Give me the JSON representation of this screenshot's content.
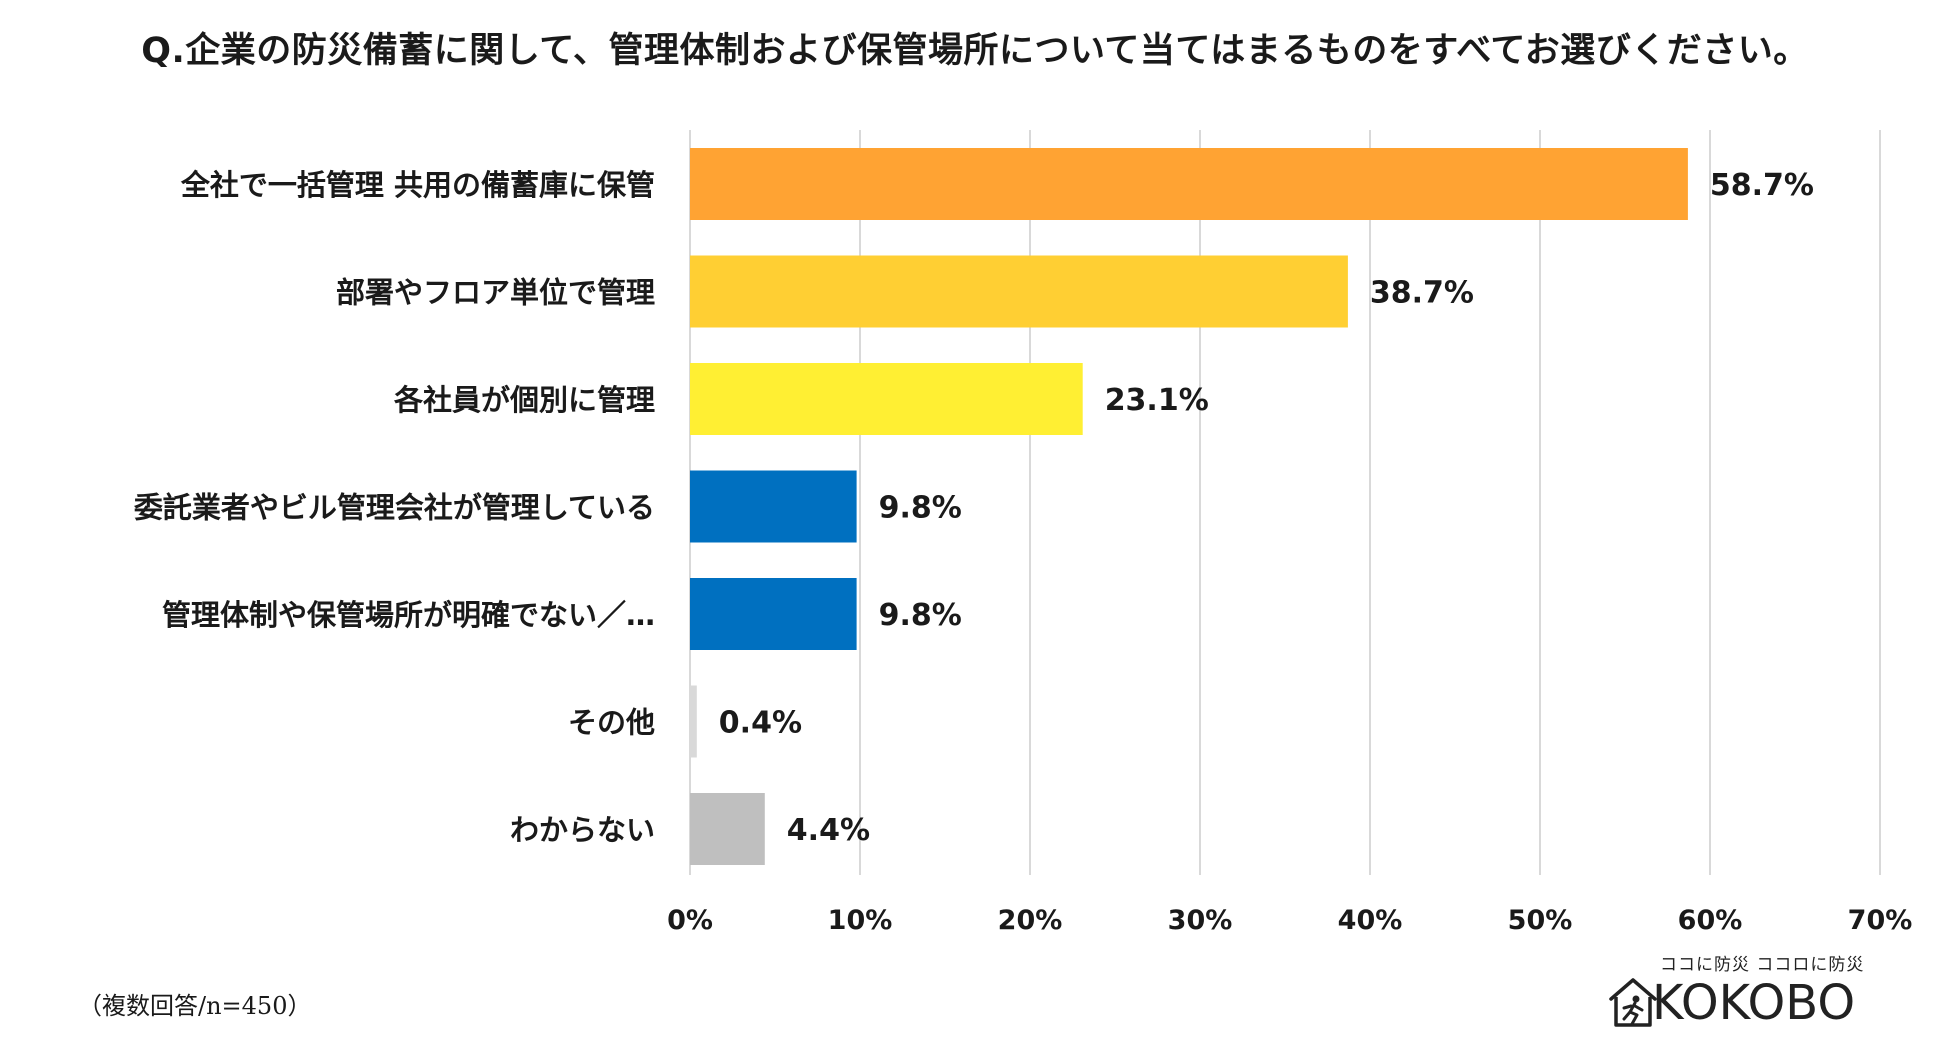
{
  "title": "Q.企業の防災備蓄に関して、管理体制および保管場所について当てはまるものをすべてお選びください。",
  "footnote": "（複数回答/n=450）",
  "logo": {
    "tagline": "ココに防災 ココロに防災",
    "text": "KOKOBO"
  },
  "chart_data": {
    "type": "bar",
    "orientation": "horizontal",
    "title": "Q.企業の防災備蓄に関して、管理体制および保管場所について当てはまるものをすべてお選びください。",
    "categories": [
      "全社で一括管理 共用の備蓄庫に保管",
      "部署やフロア単位で管理",
      "各社員が個別に管理",
      "委託業者やビル管理会社が管理している",
      "管理体制や保管場所が明確でない／…",
      "その他",
      "わからない"
    ],
    "values": [
      58.7,
      38.7,
      23.1,
      9.8,
      9.8,
      0.4,
      4.4
    ],
    "value_labels": [
      "58.7%",
      "38.7%",
      "23.1%",
      "9.8%",
      "9.8%",
      "0.4%",
      "4.4%"
    ],
    "colors": [
      "#FFA333",
      "#FFCF33",
      "#FFEF33",
      "#0070C0",
      "#0070C0",
      "#D9D9D9",
      "#BFBFBF"
    ],
    "xlim": [
      0,
      70
    ],
    "xticks": [
      0,
      10,
      20,
      30,
      40,
      50,
      60,
      70
    ],
    "xtick_labels": [
      "0%",
      "10%",
      "20%",
      "30%",
      "40%",
      "50%",
      "60%",
      "70%"
    ],
    "grid": "vertical",
    "xlabel": "",
    "ylabel": ""
  }
}
